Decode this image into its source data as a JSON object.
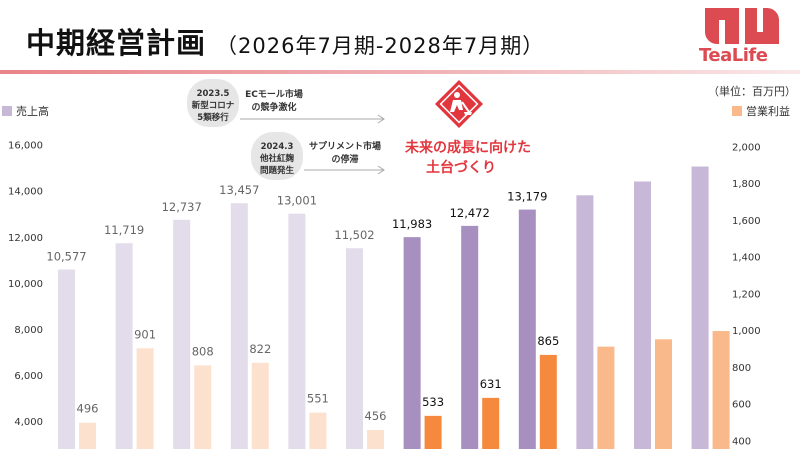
{
  "header": {
    "title": "中期経営計画",
    "subtitle": "（2026年7月期-2028年7月期）",
    "logo_text": "TeaLife",
    "unit": "（単位：百万円）"
  },
  "annotations": [
    {
      "date": "2023.5",
      "event_line1": "新型コロナ",
      "event_line2": "5類移行",
      "desc_line1": "ECモール市場",
      "desc_line2": "の競争激化"
    },
    {
      "date": "2024.3",
      "event_line1": "他社紅麹",
      "event_line2": "問題発生",
      "desc_line1": "サプリメント市場",
      "desc_line2": "の停滞"
    }
  ],
  "callout": {
    "line1": "未来の成長に向けた",
    "line2": "土台づくり",
    "icon": "construction-sign-icon"
  },
  "colors": {
    "sales_past": "#e3dcea",
    "sales_current": "#a78fbf",
    "sales_plan": "#c8b8d8",
    "profit_past": "#fce1cf",
    "profit_current": "#f5893d",
    "profit_plan": "#f9b98a",
    "accent": "#e2363e"
  },
  "chart_data": {
    "type": "bar",
    "legend_left": "売上高",
    "legend_right": "営業利益",
    "series": [
      {
        "name": "売上高",
        "axis": "left",
        "values": [
          10577,
          11719,
          12737,
          13457,
          13001,
          11502,
          11983,
          12472,
          13179,
          13800,
          14400,
          15050
        ],
        "labels": [
          "10,577",
          "11,719",
          "12,737",
          "13,457",
          "13,001",
          "11,502",
          "11,983",
          "12,472",
          "13,179",
          "",
          "",
          ""
        ]
      },
      {
        "name": "営業利益",
        "axis": "right",
        "values": [
          496,
          901,
          808,
          822,
          551,
          456,
          533,
          631,
          865,
          910,
          950,
          995
        ],
        "labels": [
          "496",
          "901",
          "808",
          "822",
          "551",
          "456",
          "533",
          "631",
          "865",
          "",
          "",
          ""
        ]
      }
    ],
    "phase": [
      "past",
      "past",
      "past",
      "past",
      "past",
      "past",
      "current",
      "current",
      "current",
      "plan",
      "plan",
      "plan"
    ],
    "y_left": {
      "min": 2000,
      "max": 16000,
      "ticks": [
        "4,000",
        "6,000",
        "8,000",
        "10,000",
        "12,000",
        "14,000",
        "16,000"
      ],
      "tick_values": [
        4000,
        6000,
        8000,
        10000,
        12000,
        14000,
        16000
      ]
    },
    "y_right": {
      "min": 200,
      "max": 2000,
      "ticks": [
        "400",
        "600",
        "800",
        "1,000",
        "1,200",
        "1,400",
        "1,600",
        "1,800",
        "2,000"
      ],
      "tick_values": [
        400,
        600,
        800,
        1000,
        1200,
        1400,
        1600,
        1800,
        2000
      ]
    },
    "grid": false
  }
}
